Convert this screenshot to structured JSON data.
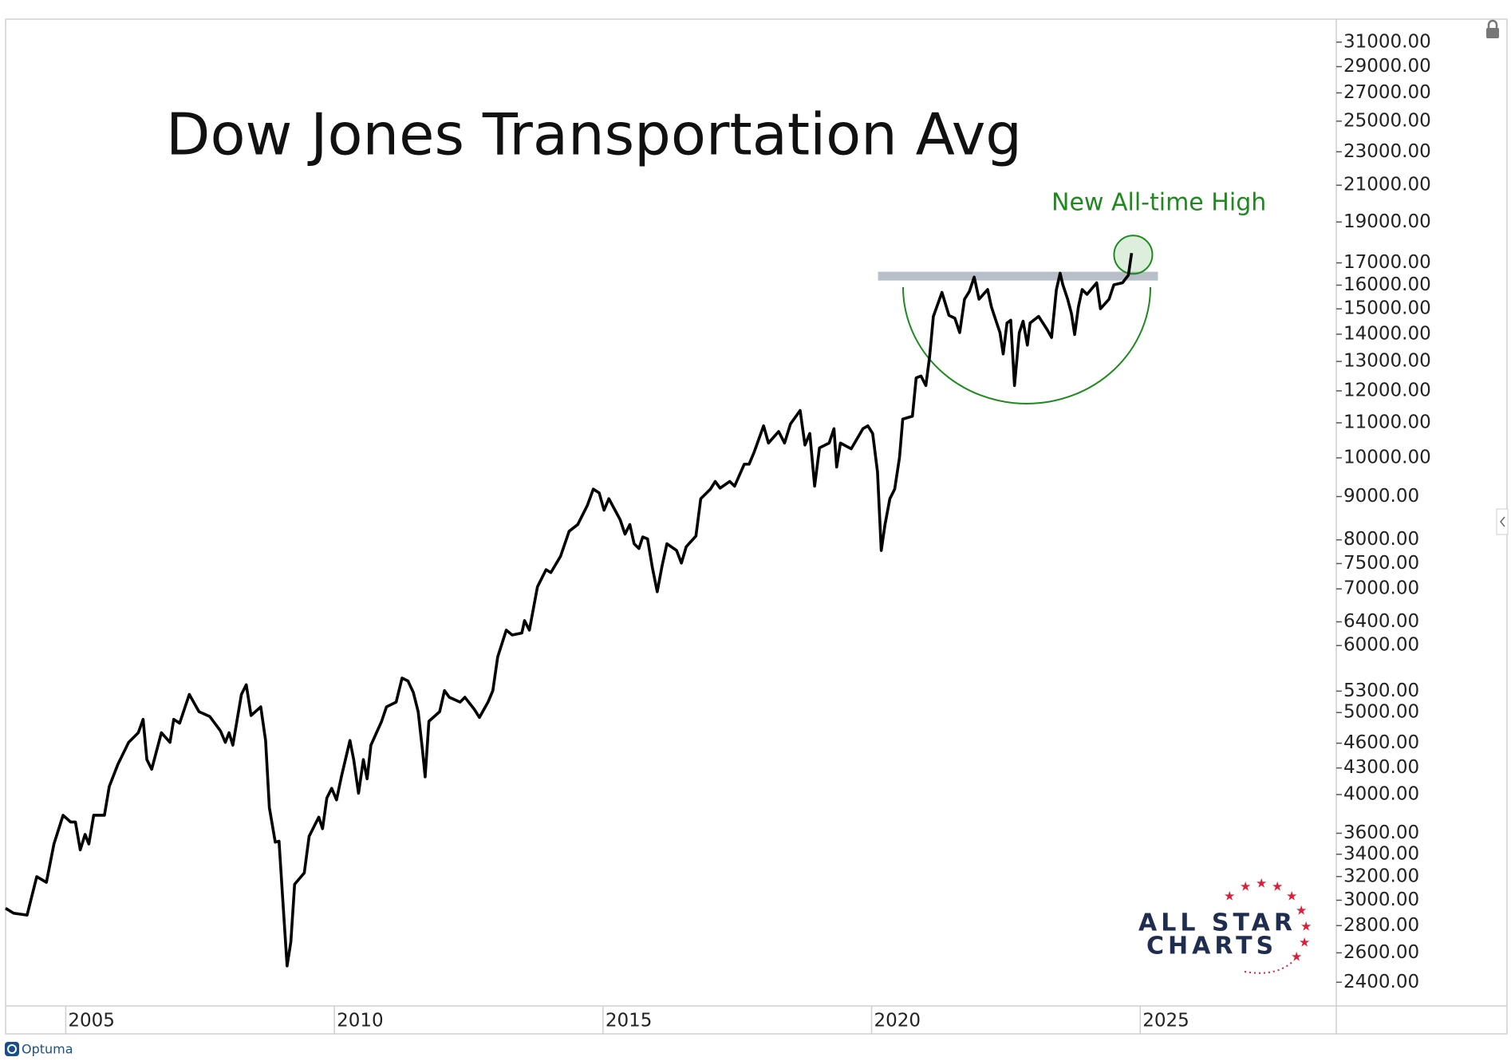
{
  "chart_data": {
    "type": "line",
    "title": "Dow Jones Transportation Avg",
    "annotation": "New All-time High",
    "logo_lines": [
      "ALL STAR",
      "CHARTS"
    ],
    "footer": "Optuma",
    "log_scale": true,
    "color": "#000000",
    "annotation_color": "#1e8a1e",
    "xlim": [
      2003.88,
      2028.65
    ],
    "xticks": [
      2005,
      2010,
      2015,
      2020,
      2025
    ],
    "ylim": [
      2250,
      33000
    ],
    "yticks": [
      {
        "value": 31000,
        "label": "31000.00"
      },
      {
        "value": 29000,
        "label": "29000.00"
      },
      {
        "value": 27000,
        "label": "27000.00"
      },
      {
        "value": 25000,
        "label": "25000.00"
      },
      {
        "value": 23000,
        "label": "23000.00"
      },
      {
        "value": 21000,
        "label": "21000.00"
      },
      {
        "value": 19000,
        "label": "19000.00"
      },
      {
        "value": 17000,
        "label": "17000.00"
      },
      {
        "value": 16000,
        "label": "16000.00"
      },
      {
        "value": 15000,
        "label": "15000.00"
      },
      {
        "value": 14000,
        "label": "14000.00"
      },
      {
        "value": 13000,
        "label": "13000.00"
      },
      {
        "value": 12000,
        "label": "12000.00"
      },
      {
        "value": 11000,
        "label": "11000.00"
      },
      {
        "value": 10000,
        "label": "10000.00"
      },
      {
        "value": 9000,
        "label": "9000.00"
      },
      {
        "value": 8000,
        "label": "8000.00"
      },
      {
        "value": 7500,
        "label": "7500.00"
      },
      {
        "value": 7000,
        "label": "7000.00"
      },
      {
        "value": 6400,
        "label": "6400.00"
      },
      {
        "value": 6000,
        "label": "6000.00"
      },
      {
        "value": 5300,
        "label": "5300.00"
      },
      {
        "value": 5000,
        "label": "5000.00"
      },
      {
        "value": 4600,
        "label": "4600.00"
      },
      {
        "value": 4300,
        "label": "4300.00"
      },
      {
        "value": 4000,
        "label": "4000.00"
      },
      {
        "value": 3600,
        "label": "3600.00"
      },
      {
        "value": 3400,
        "label": "3400.00"
      },
      {
        "value": 3200,
        "label": "3200.00"
      },
      {
        "value": 3000,
        "label": "3000.00"
      },
      {
        "value": 2800,
        "label": "2800.00"
      },
      {
        "value": 2600,
        "label": "2600.00"
      },
      {
        "value": 2400,
        "label": "2400.00"
      }
    ],
    "resistance": {
      "value": 16400,
      "x": [
        2020.12,
        2025.33
      ],
      "color": "#b8bfc9"
    },
    "x": [
      2003.88,
      2004.03,
      2004.28,
      2004.46,
      2004.64,
      2004.78,
      2004.95,
      2005.09,
      2005.18,
      2005.27,
      2005.36,
      2005.43,
      2005.52,
      2005.72,
      2005.81,
      2005.97,
      2006.17,
      2006.35,
      2006.44,
      2006.51,
      2006.6,
      2006.78,
      2006.94,
      2007.01,
      2007.12,
      2007.3,
      2007.48,
      2007.68,
      2007.88,
      2007.97,
      2008.04,
      2008.11,
      2008.27,
      2008.36,
      2008.45,
      2008.63,
      2008.72,
      2008.79,
      2008.9,
      2008.97,
      2009.05,
      2009.12,
      2009.19,
      2009.26,
      2009.44,
      2009.53,
      2009.71,
      2009.78,
      2009.86,
      2009.95,
      2010.04,
      2010.13,
      2010.29,
      2010.36,
      2010.45,
      2010.54,
      2010.61,
      2010.68,
      2010.88,
      2010.97,
      2011.15,
      2011.26,
      2011.37,
      2011.47,
      2011.56,
      2011.64,
      2011.69,
      2011.76,
      2011.96,
      2012.05,
      2012.14,
      2012.34,
      2012.43,
      2012.61,
      2012.7,
      2012.86,
      2012.95,
      2013.04,
      2013.2,
      2013.31,
      2013.49,
      2013.54,
      2013.63,
      2013.78,
      2013.94,
      2014.03,
      2014.21,
      2014.37,
      2014.53,
      2014.71,
      2014.82,
      2014.93,
      2015.02,
      2015.11,
      2015.32,
      2015.41,
      2015.5,
      2015.58,
      2015.67,
      2015.74,
      2015.83,
      2015.92,
      2016.01,
      2016.1,
      2016.19,
      2016.37,
      2016.46,
      2016.55,
      2016.73,
      2016.82,
      2017.0,
      2017.09,
      2017.18,
      2017.36,
      2017.45,
      2017.63,
      2017.72,
      2017.81,
      2017.99,
      2018.08,
      2018.27,
      2018.38,
      2018.49,
      2018.67,
      2018.76,
      2018.85,
      2018.94,
      2019.03,
      2019.21,
      2019.3,
      2019.35,
      2019.42,
      2019.62,
      2019.84,
      2019.93,
      2020.02,
      2020.11,
      2020.18,
      2020.25,
      2020.34,
      2020.43,
      2020.52,
      2020.58,
      2020.76,
      2020.83,
      2020.92,
      2021.01,
      2021.08,
      2021.15,
      2021.31,
      2021.44,
      2021.55,
      2021.64,
      2021.73,
      2021.82,
      2021.91,
      2022.0,
      2022.16,
      2022.23,
      2022.3,
      2022.39,
      2022.45,
      2022.52,
      2022.59,
      2022.66,
      2022.75,
      2022.82,
      2022.9,
      2022.95,
      2023.11,
      2023.27,
      2023.35,
      2023.44,
      2023.51,
      2023.56,
      2023.65,
      2023.72,
      2023.78,
      2023.85,
      2023.92,
      2024.01,
      2024.19,
      2024.26,
      2024.42,
      2024.51,
      2024.67,
      2024.78,
      2024.84
    ],
    "values": [
      2935,
      2896,
      2881,
      3199,
      3150,
      3496,
      3781,
      3712,
      3712,
      3441,
      3589,
      3496,
      3781,
      3781,
      4089,
      4342,
      4610,
      4733,
      4908,
      4399,
      4285,
      4733,
      4610,
      4908,
      4857,
      5253,
      5012,
      4947,
      4757,
      4610,
      4733,
      4575,
      5253,
      5393,
      4960,
      5078,
      4634,
      3860,
      3514,
      3523,
      2935,
      2509,
      2679,
      3133,
      3232,
      3570,
      3761,
      3645,
      3963,
      4068,
      3942,
      4197,
      4634,
      4399,
      4014,
      4399,
      4175,
      4575,
      4883,
      5078,
      5144,
      5492,
      5449,
      5281,
      5012,
      4516,
      4197,
      4883,
      5012,
      5308,
      5212,
      5144,
      5212,
      5039,
      4934,
      5144,
      5308,
      5816,
      6257,
      6175,
      6209,
      6422,
      6257,
      7038,
      7376,
      7318,
      7650,
      8190,
      8340,
      8788,
      9184,
      9089,
      8673,
      8948,
      8450,
      8126,
      8340,
      7915,
      7814,
      8063,
      8020,
      7415,
      6946,
      7453,
      7915,
      7772,
      7510,
      7852,
      8083,
      8948,
      9184,
      9378,
      9209,
      9378,
      9258,
      9829,
      9829,
      10141,
      10911,
      10411,
      10742,
      10411,
      10966,
      11376,
      10356,
      10686,
      9258,
      10275,
      10411,
      10827,
      9752,
      10411,
      10249,
      10827,
      10911,
      10686,
      9628,
      7772,
      8340,
      8948,
      9184,
      10012,
      11112,
      11199,
      12432,
      12496,
      12175,
      13166,
      14696,
      15687,
      14737,
      14622,
      14061,
      15400,
      15727,
      16355,
      15400,
      15810,
      15085,
      14622,
      14061,
      13268,
      14431,
      14544,
      12175,
      14061,
      14507,
      13589,
      14431,
      14696,
      14171,
      13877,
      15810,
      16529,
      16016,
      15400,
      14812,
      13987,
      15085,
      15810,
      15604,
      16101,
      15005,
      15400,
      16016,
      16101,
      16442,
      17458
    ]
  }
}
